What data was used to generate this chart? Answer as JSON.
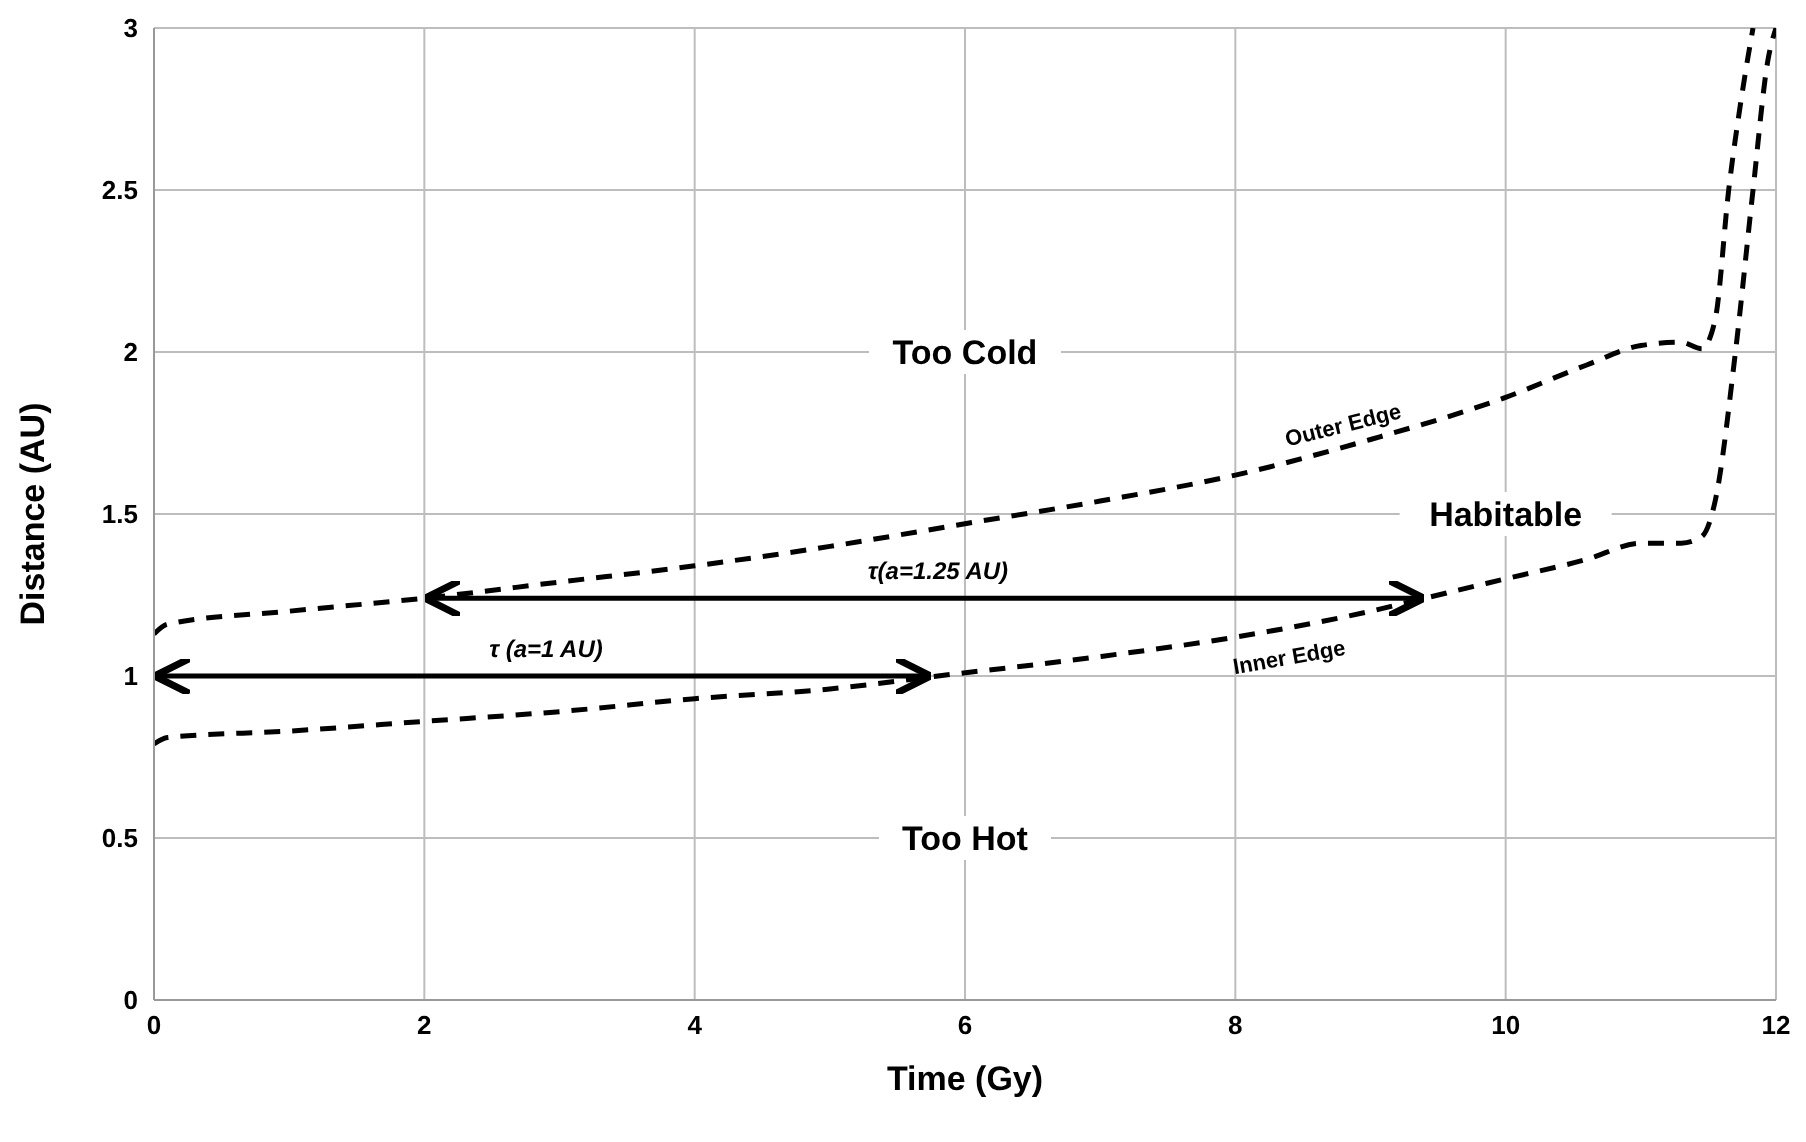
{
  "chart_data": {
    "type": "line",
    "xlabel": "Time (Gy)",
    "ylabel": "Distance (AU)",
    "xlim": [
      0,
      12
    ],
    "xticks": [
      0,
      2,
      4,
      6,
      8,
      10,
      12
    ],
    "ylim": [
      0,
      3
    ],
    "yticks": [
      0,
      0.5,
      1,
      1.5,
      2,
      2.5,
      3
    ],
    "grid": true,
    "line_style": "dashed",
    "marker": "none",
    "series": [
      {
        "name": "Outer Edge",
        "color": "#000000",
        "x": [
          0,
          0.1,
          1,
          2,
          3,
          4,
          5,
          6,
          7,
          8,
          9,
          10,
          10.6,
          11,
          11.3,
          11.45,
          11.55,
          11.65,
          11.75,
          11.83
        ],
        "values": [
          1.13,
          1.16,
          1.2,
          1.24,
          1.29,
          1.34,
          1.4,
          1.47,
          1.54,
          1.62,
          1.73,
          1.86,
          1.96,
          2.02,
          2.03,
          2.01,
          2.1,
          2.5,
          2.8,
          3.0
        ]
      },
      {
        "name": "Inner Edge",
        "color": "#000000",
        "x": [
          0,
          0.1,
          1,
          2,
          3,
          4,
          5,
          5.8,
          7,
          8,
          9,
          9.4,
          10,
          10.6,
          11,
          11.3,
          11.45,
          11.55,
          11.7,
          11.83,
          11.94,
          12
        ],
        "values": [
          0.79,
          0.81,
          0.83,
          0.86,
          0.89,
          0.93,
          0.96,
          1.0,
          1.06,
          1.12,
          1.2,
          1.24,
          1.3,
          1.36,
          1.41,
          1.41,
          1.43,
          1.54,
          2.0,
          2.5,
          2.9,
          3.0
        ]
      }
    ],
    "annotations": [
      "Too Cold",
      "Habitable",
      "Too Hot",
      "τ (a=1 AU)",
      "τ(a=1.25 AU)"
    ]
  }
}
